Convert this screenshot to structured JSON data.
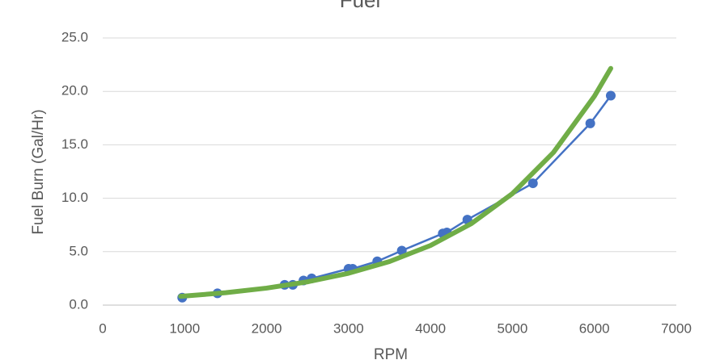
{
  "chart_data": {
    "type": "scatter",
    "title": "Fuel",
    "x_label": "RPM",
    "y_label": "Fuel Burn (Gal/Hr)",
    "xlim": [
      0,
      7000
    ],
    "xticks": [
      0,
      1000,
      2000,
      3000,
      4000,
      5000,
      6000,
      7000
    ],
    "ylim": [
      0,
      25
    ],
    "yticks": [
      {
        "value": 0,
        "label": "0.0"
      },
      {
        "value": 5,
        "label": "5.0"
      },
      {
        "value": 10,
        "label": "10.0"
      },
      {
        "value": 15,
        "label": "15.0"
      },
      {
        "value": 20,
        "label": "20.0"
      },
      {
        "value": 25,
        "label": "25.0"
      }
    ],
    "grid": true,
    "series": [
      {
        "color": "#4472c4",
        "markers": true,
        "x": [
          970,
          1400,
          2220,
          2320,
          2450,
          2550,
          3000,
          3050,
          3350,
          3650,
          4150,
          4200,
          4450,
          5250,
          5950,
          6200
        ],
        "values": [
          0.7,
          1.1,
          1.9,
          1.9,
          2.3,
          2.5,
          3.4,
          3.4,
          4.1,
          5.1,
          6.7,
          6.8,
          8.0,
          11.4,
          17.0,
          19.6
        ]
      },
      {
        "color": "#70ad47",
        "markers": false,
        "x": [
          950,
          1500,
          2000,
          2500,
          3000,
          3500,
          4000,
          4500,
          5000,
          5500,
          6000,
          6200
        ],
        "values": [
          0.82,
          1.16,
          1.59,
          2.18,
          2.98,
          4.08,
          5.58,
          7.63,
          10.44,
          14.28,
          19.54,
          22.15
        ]
      }
    ]
  }
}
